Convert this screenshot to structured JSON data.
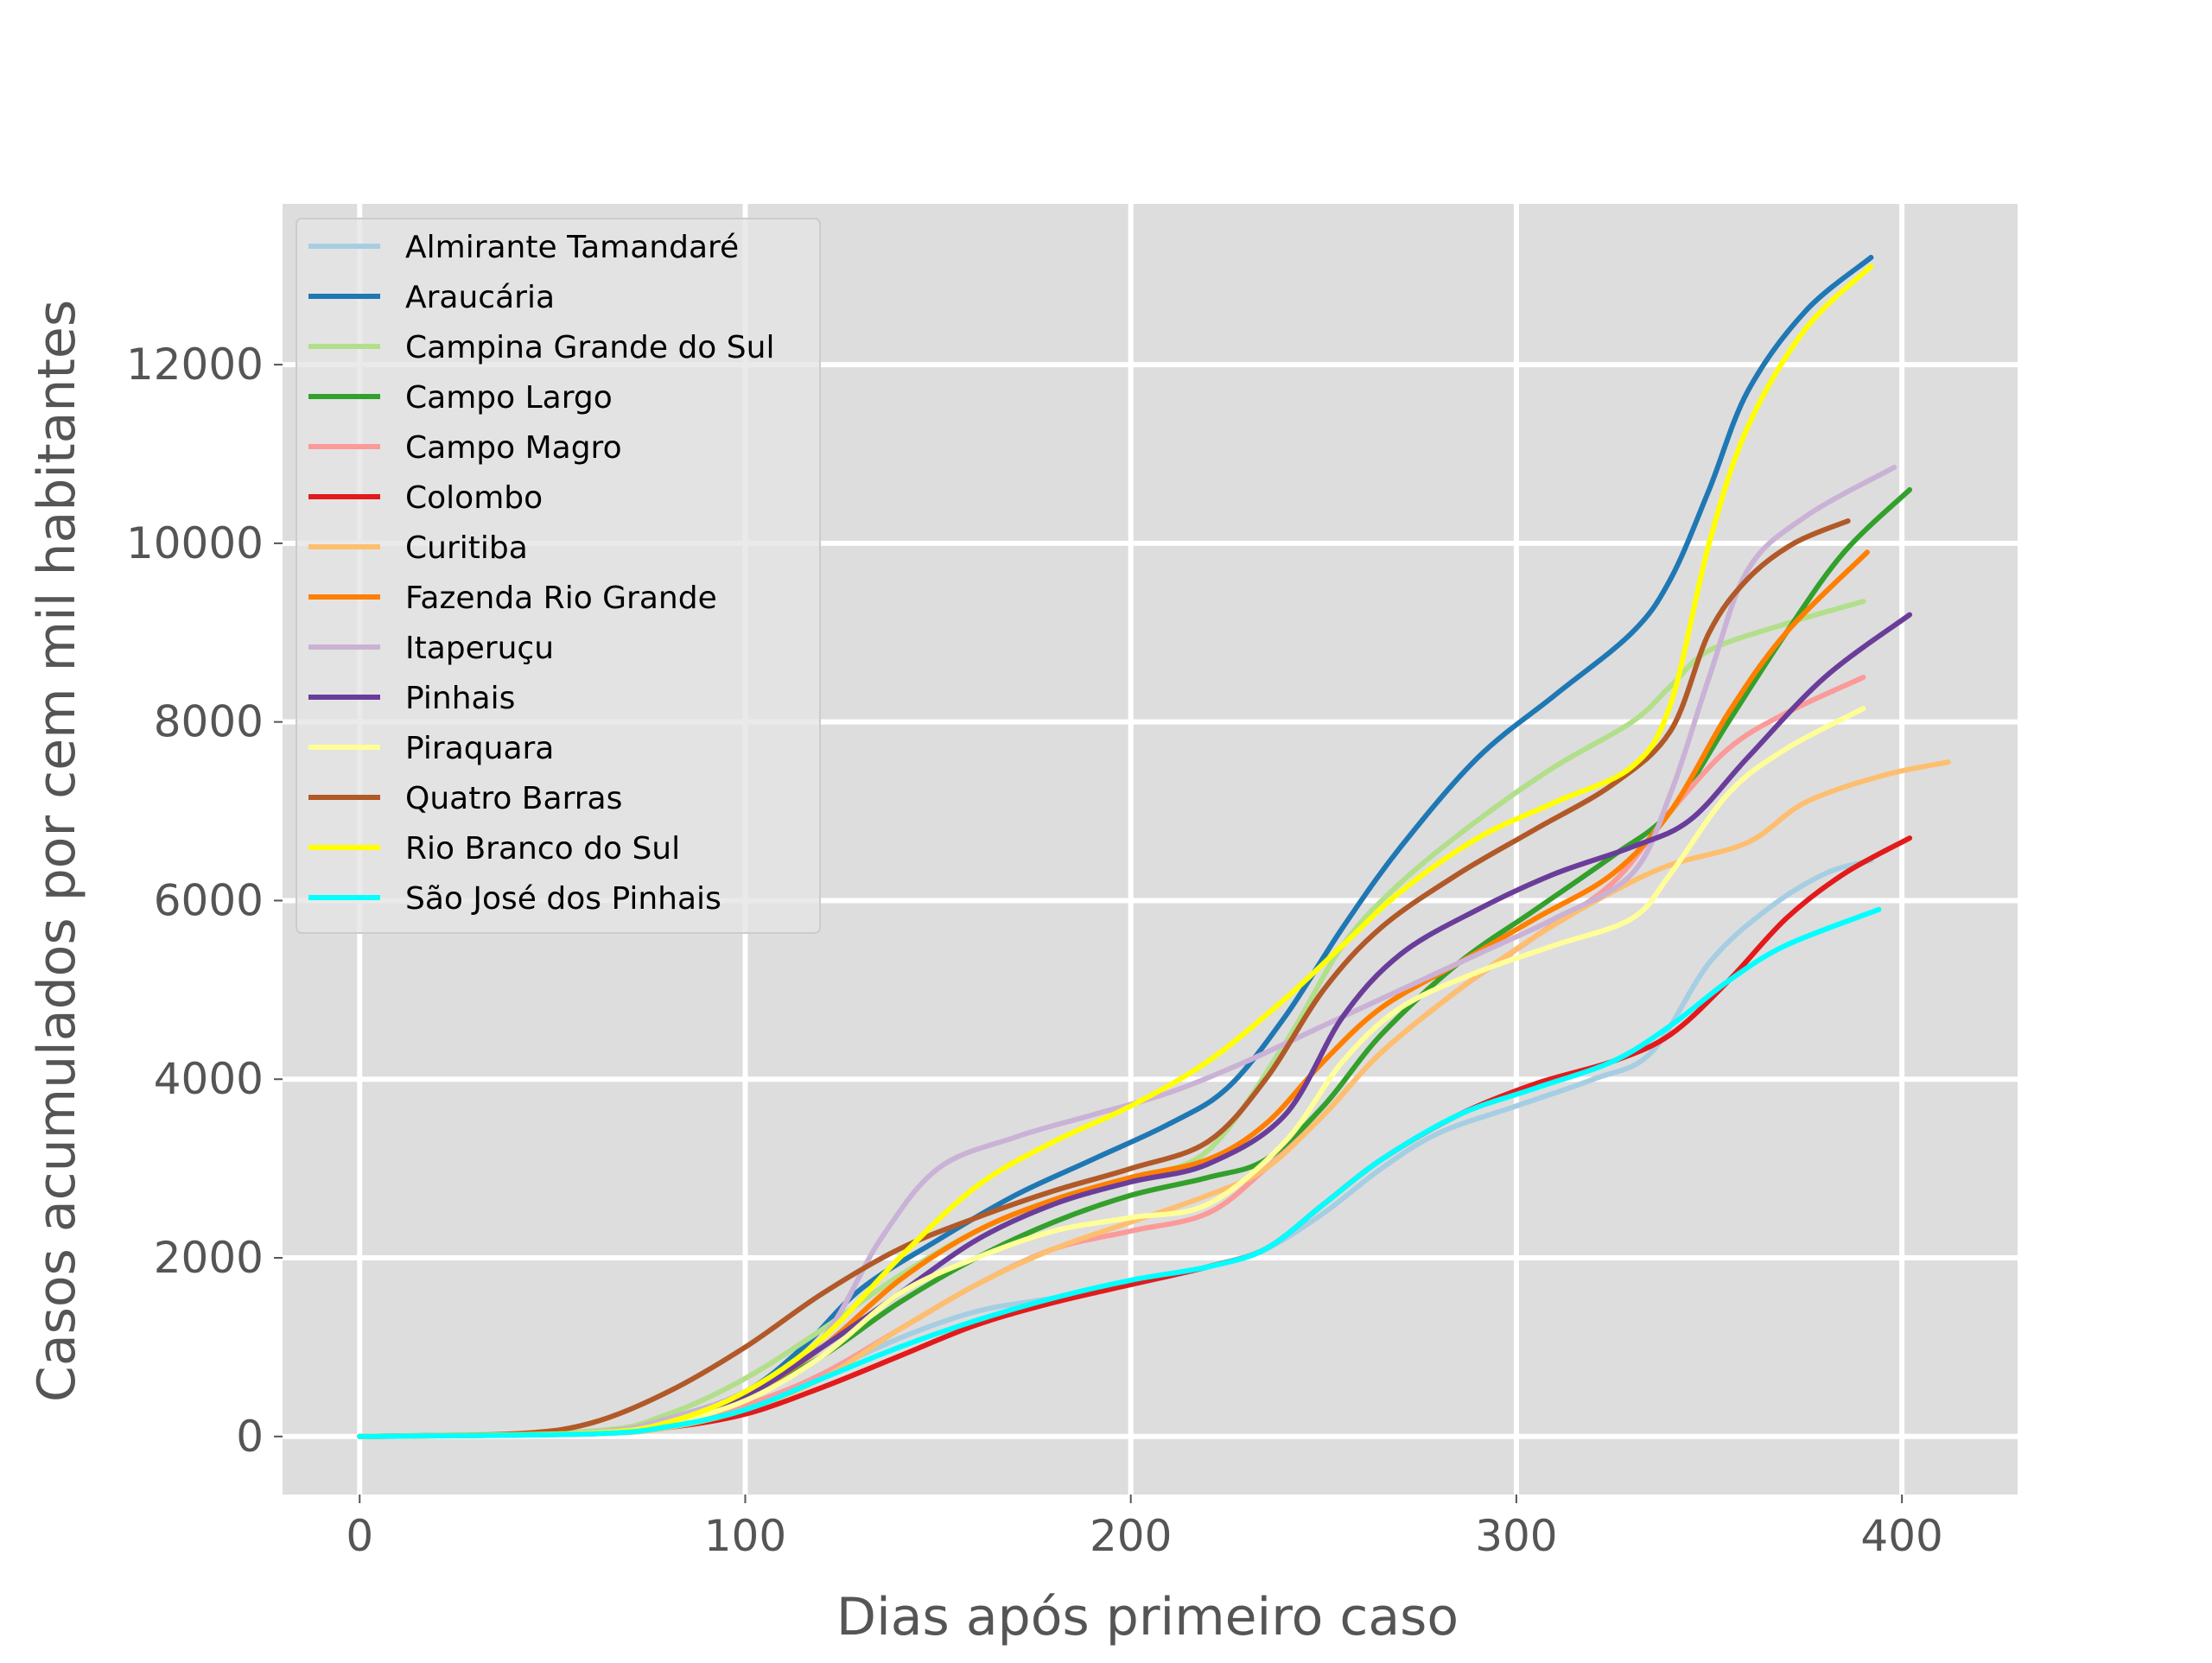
{
  "chart_data": {
    "type": "line",
    "title": "",
    "xlabel": "Dias após primeiro caso",
    "ylabel": "Casos acumulados por cem mil habitantes",
    "xlim": [
      -20,
      430
    ],
    "ylim": [
      -650,
      13800
    ],
    "xticks": [
      0,
      100,
      200,
      300,
      400
    ],
    "yticks": [
      0,
      2000,
      4000,
      6000,
      8000,
      10000,
      12000
    ],
    "grid": true,
    "legend_position": "upper-left",
    "series": [
      {
        "name": "Almirante Tamandaré",
        "color": "#a6cee3",
        "points": [
          [
            0,
            0
          ],
          [
            60,
            40
          ],
          [
            80,
            120
          ],
          [
            100,
            300
          ],
          [
            120,
            700
          ],
          [
            140,
            1100
          ],
          [
            160,
            1400
          ],
          [
            180,
            1550
          ],
          [
            200,
            1700
          ],
          [
            220,
            1900
          ],
          [
            235,
            2100
          ],
          [
            250,
            2500
          ],
          [
            265,
            3000
          ],
          [
            280,
            3400
          ],
          [
            300,
            3700
          ],
          [
            320,
            4000
          ],
          [
            335,
            4300
          ],
          [
            350,
            5300
          ],
          [
            365,
            5900
          ],
          [
            380,
            6300
          ],
          [
            392,
            6450
          ]
        ]
      },
      {
        "name": "Araucária",
        "color": "#1f78b4",
        "points": [
          [
            0,
            0
          ],
          [
            60,
            50
          ],
          [
            80,
            200
          ],
          [
            100,
            500
          ],
          [
            115,
            1000
          ],
          [
            130,
            1650
          ],
          [
            150,
            2200
          ],
          [
            170,
            2700
          ],
          [
            190,
            3100
          ],
          [
            210,
            3500
          ],
          [
            225,
            3900
          ],
          [
            240,
            4700
          ],
          [
            255,
            5700
          ],
          [
            270,
            6600
          ],
          [
            290,
            7600
          ],
          [
            310,
            8300
          ],
          [
            330,
            9000
          ],
          [
            340,
            9600
          ],
          [
            350,
            10600
          ],
          [
            360,
            11700
          ],
          [
            375,
            12600
          ],
          [
            392,
            13200
          ]
        ]
      },
      {
        "name": "Campina Grande do Sul",
        "color": "#b2df8a",
        "points": [
          [
            0,
            0
          ],
          [
            60,
            60
          ],
          [
            80,
            250
          ],
          [
            100,
            650
          ],
          [
            120,
            1200
          ],
          [
            140,
            1800
          ],
          [
            160,
            2300
          ],
          [
            180,
            2650
          ],
          [
            200,
            2900
          ],
          [
            220,
            3200
          ],
          [
            240,
            4400
          ],
          [
            255,
            5500
          ],
          [
            270,
            6200
          ],
          [
            290,
            6900
          ],
          [
            310,
            7500
          ],
          [
            330,
            8000
          ],
          [
            340,
            8400
          ],
          [
            350,
            8800
          ],
          [
            370,
            9100
          ],
          [
            390,
            9350
          ]
        ]
      },
      {
        "name": "Campo Largo",
        "color": "#33a02c",
        "points": [
          [
            0,
            0
          ],
          [
            60,
            40
          ],
          [
            80,
            150
          ],
          [
            100,
            450
          ],
          [
            120,
            900
          ],
          [
            140,
            1500
          ],
          [
            160,
            2000
          ],
          [
            180,
            2400
          ],
          [
            200,
            2700
          ],
          [
            220,
            2900
          ],
          [
            235,
            3100
          ],
          [
            250,
            3700
          ],
          [
            265,
            4500
          ],
          [
            285,
            5300
          ],
          [
            305,
            5900
          ],
          [
            325,
            6500
          ],
          [
            340,
            7000
          ],
          [
            355,
            8000
          ],
          [
            370,
            9000
          ],
          [
            385,
            9900
          ],
          [
            402,
            10600
          ]
        ]
      },
      {
        "name": "Campo Magro",
        "color": "#fb9a99",
        "points": [
          [
            0,
            0
          ],
          [
            60,
            40
          ],
          [
            80,
            130
          ],
          [
            100,
            350
          ],
          [
            120,
            700
          ],
          [
            140,
            1200
          ],
          [
            160,
            1700
          ],
          [
            180,
            2100
          ],
          [
            200,
            2300
          ],
          [
            220,
            2500
          ],
          [
            235,
            3000
          ],
          [
            250,
            3600
          ],
          [
            265,
            4300
          ],
          [
            285,
            5000
          ],
          [
            305,
            5600
          ],
          [
            325,
            6200
          ],
          [
            340,
            7000
          ],
          [
            355,
            7700
          ],
          [
            370,
            8100
          ],
          [
            390,
            8500
          ]
        ]
      },
      {
        "name": "Colombo",
        "color": "#e31a1c",
        "points": [
          [
            0,
            0
          ],
          [
            60,
            30
          ],
          [
            80,
            100
          ],
          [
            100,
            250
          ],
          [
            120,
            550
          ],
          [
            140,
            900
          ],
          [
            160,
            1250
          ],
          [
            180,
            1500
          ],
          [
            200,
            1700
          ],
          [
            220,
            1900
          ],
          [
            235,
            2100
          ],
          [
            250,
            2600
          ],
          [
            265,
            3100
          ],
          [
            285,
            3600
          ],
          [
            305,
            3950
          ],
          [
            325,
            4200
          ],
          [
            340,
            4500
          ],
          [
            355,
            5100
          ],
          [
            370,
            5800
          ],
          [
            385,
            6300
          ],
          [
            402,
            6700
          ]
        ]
      },
      {
        "name": "Curitiba",
        "color": "#fdbf6f",
        "points": [
          [
            0,
            0
          ],
          [
            60,
            30
          ],
          [
            80,
            100
          ],
          [
            100,
            300
          ],
          [
            120,
            650
          ],
          [
            140,
            1200
          ],
          [
            160,
            1700
          ],
          [
            180,
            2100
          ],
          [
            200,
            2400
          ],
          [
            220,
            2700
          ],
          [
            235,
            3000
          ],
          [
            250,
            3600
          ],
          [
            265,
            4300
          ],
          [
            285,
            5000
          ],
          [
            305,
            5600
          ],
          [
            325,
            6100
          ],
          [
            340,
            6400
          ],
          [
            360,
            6650
          ],
          [
            375,
            7100
          ],
          [
            395,
            7400
          ],
          [
            412,
            7550
          ]
        ]
      },
      {
        "name": "Fazenda Rio Grande",
        "color": "#ff7f00",
        "points": [
          [
            0,
            0
          ],
          [
            60,
            40
          ],
          [
            80,
            150
          ],
          [
            100,
            450
          ],
          [
            120,
            1000
          ],
          [
            140,
            1750
          ],
          [
            160,
            2300
          ],
          [
            180,
            2650
          ],
          [
            200,
            2900
          ],
          [
            220,
            3100
          ],
          [
            235,
            3500
          ],
          [
            250,
            4200
          ],
          [
            265,
            4800
          ],
          [
            285,
            5300
          ],
          [
            305,
            5800
          ],
          [
            325,
            6300
          ],
          [
            340,
            7000
          ],
          [
            355,
            8100
          ],
          [
            370,
            9000
          ],
          [
            391,
            9900
          ]
        ]
      },
      {
        "name": "Itaperuçu",
        "color": "#cab2d6",
        "points": [
          [
            0,
            0
          ],
          [
            60,
            50
          ],
          [
            80,
            200
          ],
          [
            100,
            500
          ],
          [
            120,
            1100
          ],
          [
            135,
            2200
          ],
          [
            150,
            3000
          ],
          [
            170,
            3350
          ],
          [
            190,
            3600
          ],
          [
            210,
            3850
          ],
          [
            230,
            4200
          ],
          [
            250,
            4600
          ],
          [
            270,
            5000
          ],
          [
            290,
            5400
          ],
          [
            310,
            5800
          ],
          [
            330,
            6300
          ],
          [
            340,
            7200
          ],
          [
            350,
            8500
          ],
          [
            360,
            9700
          ],
          [
            375,
            10300
          ],
          [
            398,
            10850
          ]
        ]
      },
      {
        "name": "Pinhais",
        "color": "#6a3d9a",
        "points": [
          [
            0,
            0
          ],
          [
            60,
            40
          ],
          [
            80,
            150
          ],
          [
            100,
            450
          ],
          [
            120,
            1000
          ],
          [
            140,
            1600
          ],
          [
            160,
            2200
          ],
          [
            180,
            2600
          ],
          [
            200,
            2850
          ],
          [
            220,
            3050
          ],
          [
            240,
            3600
          ],
          [
            255,
            4700
          ],
          [
            270,
            5400
          ],
          [
            290,
            5900
          ],
          [
            310,
            6300
          ],
          [
            330,
            6600
          ],
          [
            345,
            6900
          ],
          [
            360,
            7600
          ],
          [
            380,
            8500
          ],
          [
            402,
            9200
          ]
        ]
      },
      {
        "name": "Piraquara",
        "color": "#ffff99",
        "points": [
          [
            0,
            0
          ],
          [
            60,
            40
          ],
          [
            80,
            150
          ],
          [
            100,
            400
          ],
          [
            120,
            900
          ],
          [
            140,
            1600
          ],
          [
            160,
            2000
          ],
          [
            180,
            2300
          ],
          [
            200,
            2450
          ],
          [
            220,
            2600
          ],
          [
            240,
            3300
          ],
          [
            255,
            4200
          ],
          [
            270,
            4800
          ],
          [
            290,
            5200
          ],
          [
            310,
            5500
          ],
          [
            330,
            5800
          ],
          [
            340,
            6300
          ],
          [
            355,
            7200
          ],
          [
            370,
            7700
          ],
          [
            390,
            8150
          ]
        ]
      },
      {
        "name": "Quatro Barras",
        "color": "#b15928",
        "points": [
          [
            0,
            0
          ],
          [
            40,
            30
          ],
          [
            60,
            150
          ],
          [
            80,
            500
          ],
          [
            100,
            1000
          ],
          [
            120,
            1600
          ],
          [
            140,
            2100
          ],
          [
            160,
            2450
          ],
          [
            180,
            2750
          ],
          [
            200,
            3000
          ],
          [
            220,
            3300
          ],
          [
            235,
            4000
          ],
          [
            250,
            5000
          ],
          [
            265,
            5700
          ],
          [
            285,
            6300
          ],
          [
            305,
            6800
          ],
          [
            325,
            7300
          ],
          [
            340,
            7900
          ],
          [
            350,
            9000
          ],
          [
            360,
            9600
          ],
          [
            372,
            10000
          ],
          [
            386,
            10250
          ]
        ]
      },
      {
        "name": "Rio Branco do Sul",
        "color": "#ffff00",
        "points": [
          [
            0,
            0
          ],
          [
            60,
            40
          ],
          [
            80,
            160
          ],
          [
            100,
            500
          ],
          [
            120,
            1100
          ],
          [
            140,
            2000
          ],
          [
            160,
            2800
          ],
          [
            180,
            3300
          ],
          [
            200,
            3700
          ],
          [
            220,
            4200
          ],
          [
            240,
            4900
          ],
          [
            255,
            5500
          ],
          [
            270,
            6100
          ],
          [
            290,
            6700
          ],
          [
            310,
            7100
          ],
          [
            330,
            7500
          ],
          [
            340,
            8200
          ],
          [
            350,
            10000
          ],
          [
            360,
            11300
          ],
          [
            375,
            12400
          ],
          [
            392,
            13100
          ]
        ]
      },
      {
        "name": "São José dos Pinhais",
        "color": "#00ffff",
        "points": [
          [
            0,
            0
          ],
          [
            60,
            30
          ],
          [
            80,
            110
          ],
          [
            100,
            300
          ],
          [
            120,
            650
          ],
          [
            140,
            1000
          ],
          [
            160,
            1300
          ],
          [
            180,
            1550
          ],
          [
            200,
            1750
          ],
          [
            220,
            1900
          ],
          [
            235,
            2100
          ],
          [
            250,
            2600
          ],
          [
            265,
            3100
          ],
          [
            285,
            3600
          ],
          [
            305,
            3900
          ],
          [
            325,
            4200
          ],
          [
            340,
            4600
          ],
          [
            355,
            5100
          ],
          [
            370,
            5500
          ],
          [
            394,
            5900
          ]
        ]
      }
    ]
  }
}
